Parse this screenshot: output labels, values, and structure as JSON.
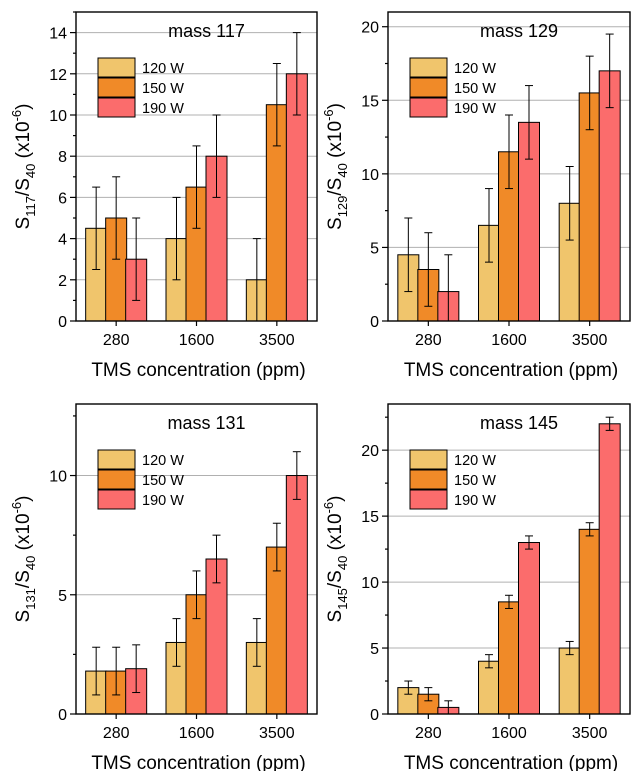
{
  "legend": [
    "120 W",
    "150 W",
    "190 W"
  ],
  "colors": {
    "120 W": "#f0c56c",
    "150 W": "#f08a28",
    "190 W": "#fb6c6c",
    "grid": "#b0b0b0"
  },
  "chart_data": [
    {
      "type": "bar",
      "title": "mass 117",
      "xlabel": "TMS concentration (ppm)",
      "ylabel_main": "S",
      "ylabel_sub1": "117",
      "ylabel_mid": "/S",
      "ylabel_sub2": "40",
      "ylabel_unit": " (x10",
      "ylabel_exp": "-6",
      "ylabel_close": ")",
      "categories": [
        "280",
        "1600",
        "3500"
      ],
      "ylim": [
        0,
        15
      ],
      "yticks": [
        0,
        2,
        4,
        6,
        8,
        10,
        12,
        14
      ],
      "grid": true,
      "legend_position": "top-left",
      "series": [
        {
          "name": "120 W",
          "values": [
            4.5,
            4,
            2
          ],
          "errors": [
            2,
            2,
            2
          ]
        },
        {
          "name": "150 W",
          "values": [
            5,
            6.5,
            10.5
          ],
          "errors": [
            2,
            2,
            2
          ]
        },
        {
          "name": "190 W",
          "values": [
            3,
            8,
            12
          ],
          "errors": [
            2,
            2,
            2
          ]
        }
      ]
    },
    {
      "type": "bar",
      "title": "mass 129",
      "xlabel": "TMS concentration (ppm)",
      "ylabel_main": "S",
      "ylabel_sub1": "129",
      "ylabel_mid": "/S",
      "ylabel_sub2": "40",
      "ylabel_unit": " (x10",
      "ylabel_exp": "-6",
      "ylabel_close": ")",
      "categories": [
        "280",
        "1600",
        "3500"
      ],
      "ylim": [
        0,
        21
      ],
      "yticks": [
        0,
        5,
        10,
        15,
        20
      ],
      "grid": true,
      "legend_position": "top-left",
      "series": [
        {
          "name": "120 W",
          "values": [
            4.5,
            6.5,
            8
          ],
          "errors": [
            2.5,
            2.5,
            2.5
          ]
        },
        {
          "name": "150 W",
          "values": [
            3.5,
            11.5,
            15.5
          ],
          "errors": [
            2.5,
            2.5,
            2.5
          ]
        },
        {
          "name": "190 W",
          "values": [
            2,
            13.5,
            17
          ],
          "errors": [
            2.5,
            2.5,
            2.5
          ]
        }
      ]
    },
    {
      "type": "bar",
      "title": "mass 131",
      "xlabel": "TMS concentration (ppm)",
      "ylabel_main": "S",
      "ylabel_sub1": "131",
      "ylabel_mid": "/S",
      "ylabel_sub2": "40",
      "ylabel_unit": " (x10",
      "ylabel_exp": "-6",
      "ylabel_close": ")",
      "categories": [
        "280",
        "1600",
        "3500"
      ],
      "ylim": [
        0,
        13
      ],
      "yticks": [
        0,
        5,
        10
      ],
      "grid": true,
      "legend_position": "top-left",
      "series": [
        {
          "name": "120 W",
          "values": [
            1.8,
            3,
            3
          ],
          "errors": [
            1,
            1,
            1
          ]
        },
        {
          "name": "150 W",
          "values": [
            1.8,
            5,
            7
          ],
          "errors": [
            1,
            1,
            1
          ]
        },
        {
          "name": "190 W",
          "values": [
            1.9,
            6.5,
            10
          ],
          "errors": [
            1,
            1,
            1
          ]
        }
      ]
    },
    {
      "type": "bar",
      "title": "mass 145",
      "xlabel": "TMS concentration (ppm)",
      "ylabel_main": "S",
      "ylabel_sub1": "145",
      "ylabel_mid": "/S",
      "ylabel_sub2": "40",
      "ylabel_unit": " (x10",
      "ylabel_exp": "-6",
      "ylabel_close": ")",
      "categories": [
        "280",
        "1600",
        "3500"
      ],
      "ylim": [
        0,
        23.5
      ],
      "yticks": [
        0,
        5,
        10,
        15,
        20
      ],
      "grid": true,
      "legend_position": "top-left",
      "series": [
        {
          "name": "120 W",
          "values": [
            2,
            4,
            5
          ],
          "errors": [
            0.5,
            0.5,
            0.5
          ]
        },
        {
          "name": "150 W",
          "values": [
            1.5,
            8.5,
            14
          ],
          "errors": [
            0.5,
            0.5,
            0.5
          ]
        },
        {
          "name": "190 W",
          "values": [
            0.5,
            13,
            22
          ],
          "errors": [
            0.5,
            0.5,
            0.5
          ]
        }
      ]
    }
  ]
}
